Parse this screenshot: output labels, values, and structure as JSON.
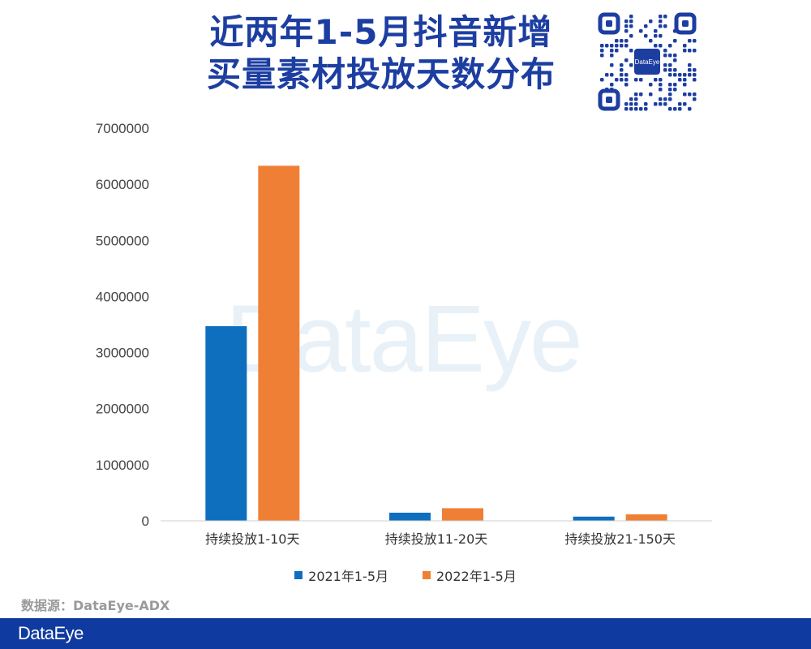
{
  "header": {
    "title_line1": "近两年1-5月抖音新增",
    "title_line2": "买量素材投放天数分布",
    "qr_center_label": "DataEye"
  },
  "watermark": "DataEye",
  "source": "数据源：DataEye-ADX",
  "footer": {
    "logo": "DataEye",
    "background": "#0f3aa0"
  },
  "chart_data": {
    "type": "bar",
    "categories": [
      "持续投放1-10天",
      "持续投放11-20天",
      "持续投放21-150天"
    ],
    "series": [
      {
        "name": "2021年1-5月",
        "color": "#0f6fbf",
        "values": [
          3470000,
          145000,
          75000
        ]
      },
      {
        "name": "2022年1-5月",
        "color": "#ef7f35",
        "values": [
          6330000,
          225000,
          115000
        ]
      }
    ],
    "yticks": [
      "0",
      "1000000",
      "2000000",
      "3000000",
      "4000000",
      "5000000",
      "6000000",
      "7000000"
    ],
    "ylim": [
      0,
      7000000
    ],
    "grid": false,
    "legend_position": "bottom"
  }
}
